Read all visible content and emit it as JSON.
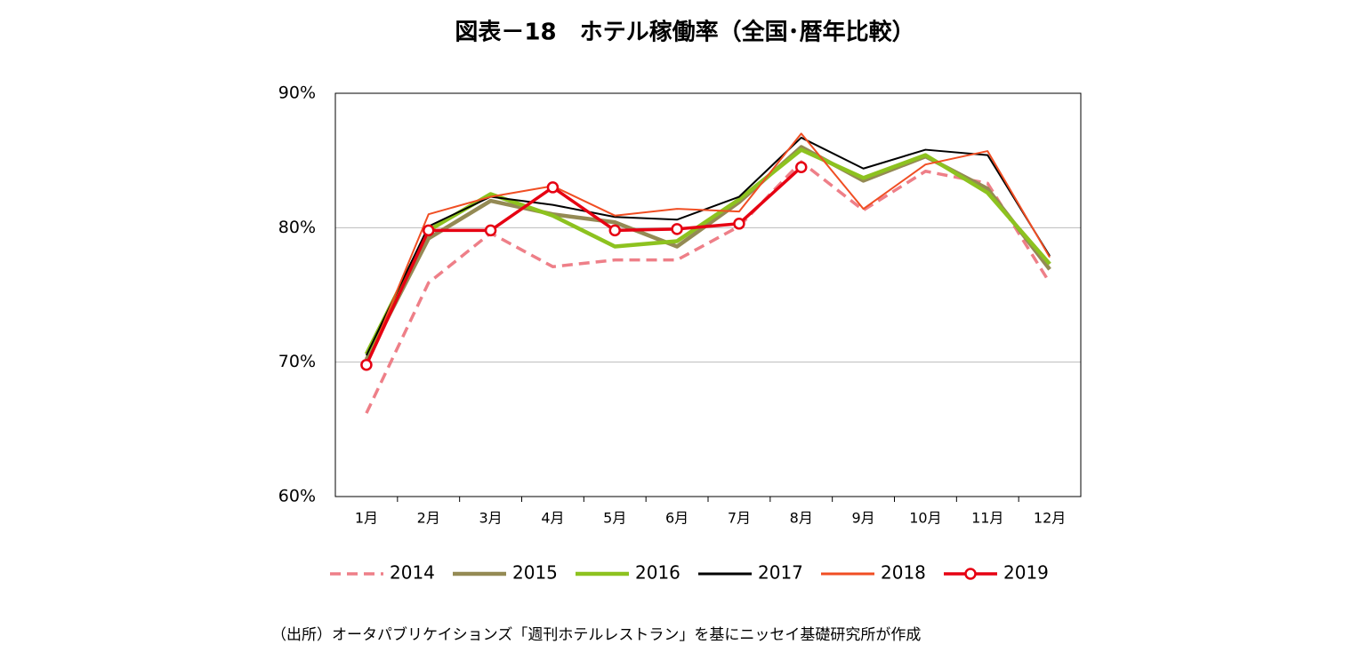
{
  "chart_data": {
    "type": "line",
    "title": "図表－18　ホテル稼働率（全国･暦年比較）",
    "categories": [
      "1月",
      "2月",
      "3月",
      "4月",
      "5月",
      "6月",
      "7月",
      "8月",
      "9月",
      "10月",
      "11月",
      "12月"
    ],
    "series": [
      {
        "name": "2014",
        "color": "#ee7f88",
        "line_style": "dashed",
        "values": [
          66.2,
          75.9,
          79.6,
          77.1,
          77.6,
          77.6,
          80.1,
          84.9,
          81.3,
          84.2,
          83.3,
          75.9
        ]
      },
      {
        "name": "2015",
        "color": "#948a54",
        "values": [
          70.2,
          79.2,
          82.0,
          81.0,
          80.4,
          78.6,
          81.9,
          86.0,
          83.5,
          85.3,
          82.9,
          76.9
        ]
      },
      {
        "name": "2016",
        "color": "#8dc21f",
        "values": [
          70.6,
          79.8,
          82.5,
          80.9,
          78.6,
          79.0,
          82.1,
          85.8,
          83.7,
          85.4,
          82.6,
          77.3
        ]
      },
      {
        "name": "2017",
        "color": "#000000",
        "values": [
          70.5,
          80.1,
          82.3,
          81.7,
          80.8,
          80.6,
          82.3,
          86.7,
          84.4,
          85.8,
          85.4,
          77.9
        ]
      },
      {
        "name": "2018",
        "color": "#f04e23",
        "values": [
          69.8,
          81.0,
          82.3,
          83.1,
          80.9,
          81.4,
          81.2,
          87.0,
          81.4,
          84.7,
          85.7,
          77.8
        ]
      },
      {
        "name": "2019",
        "color": "#e60012",
        "marker": "circle",
        "values": [
          69.8,
          79.8,
          79.8,
          83.0,
          79.8,
          79.9,
          80.3,
          84.5,
          null,
          null,
          null,
          null
        ]
      }
    ],
    "ylim": [
      60,
      90
    ],
    "yticks": [
      {
        "value": 60,
        "label": "60%"
      },
      {
        "value": 70,
        "label": "70%"
      },
      {
        "value": 80,
        "label": "80%"
      },
      {
        "value": 90,
        "label": "90%"
      }
    ],
    "grid": true,
    "legend": "bottom",
    "note": "（出所）オータパブリケイションズ「週刊ホテルレストラン」を基にニッセイ基礎研究所が作成"
  }
}
